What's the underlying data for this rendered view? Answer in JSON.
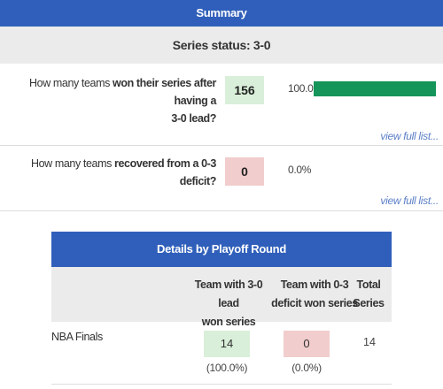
{
  "summary": {
    "title": "Summary",
    "series_status": "Series status: 3-0"
  },
  "questions": [
    {
      "text_prefix": "How many teams ",
      "text_bold_line1": "won their series after having a",
      "text_bold_line2": "3-0 lead?",
      "value": "156",
      "percent": "100.0%",
      "bar_fraction": 1.0,
      "box_color": "#d9efd9",
      "link": "view full list..."
    },
    {
      "text_prefix": "How many teams ",
      "text_bold": "recovered from a 0-3 deficit?",
      "value": "0",
      "percent": "0.0%",
      "bar_fraction": 0.0,
      "box_color": "#f2cdcd",
      "link": "view full list..."
    }
  ],
  "details": {
    "title": "Details by Playoff Round",
    "columns": [
      {
        "line1": "Team with 3-0 lead",
        "line2": "won series"
      },
      {
        "line1": "Team with 0-3",
        "line2": "deficit won series"
      },
      {
        "line1": "Total",
        "line2": "Series"
      }
    ],
    "rows": [
      {
        "round": "NBA Finals",
        "lead_won": "14",
        "lead_won_pct": "(100.0%)",
        "deficit_won": "0",
        "deficit_won_pct": "(0.0%)",
        "total": "14"
      }
    ]
  },
  "colors": {
    "header_blue": "#2f5fba",
    "status_gray": "#ebebeb",
    "bar_green": "#15955a",
    "green_box": "#d9efd9",
    "red_box": "#f2cdcd",
    "link_blue": "#5b7fc7"
  }
}
